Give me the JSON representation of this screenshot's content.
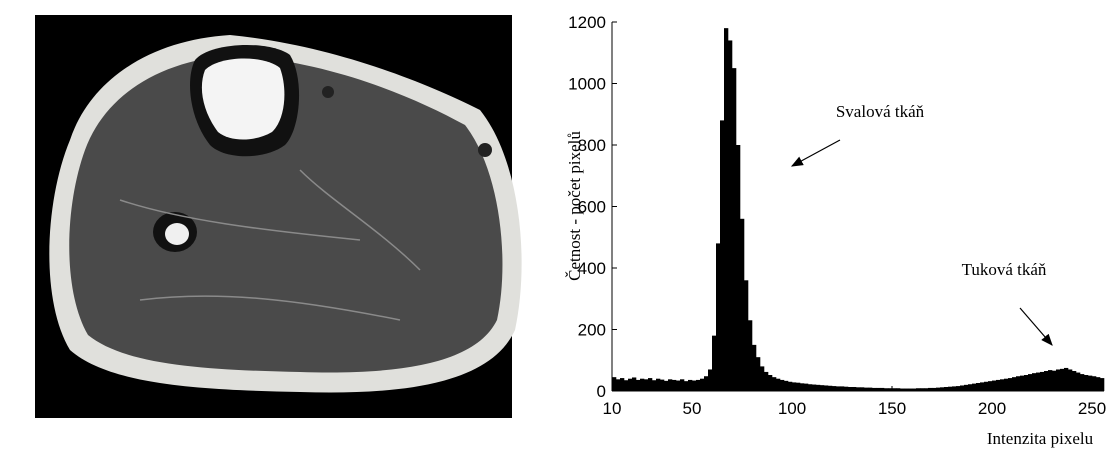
{
  "chart_data": {
    "type": "histogram",
    "bins": [
      10,
      12,
      14,
      16,
      18,
      20,
      22,
      24,
      26,
      28,
      30,
      32,
      34,
      36,
      38,
      40,
      42,
      44,
      46,
      48,
      50,
      52,
      54,
      56,
      58,
      60,
      62,
      64,
      66,
      68,
      70,
      72,
      74,
      76,
      78,
      80,
      82,
      84,
      86,
      88,
      90,
      92,
      94,
      96,
      98,
      100,
      102,
      104,
      106,
      108,
      110,
      112,
      114,
      116,
      118,
      120,
      122,
      124,
      126,
      128,
      130,
      132,
      134,
      136,
      138,
      140,
      142,
      144,
      146,
      148,
      150,
      152,
      154,
      156,
      158,
      160,
      162,
      164,
      166,
      168,
      170,
      172,
      174,
      176,
      178,
      180,
      182,
      184,
      186,
      188,
      190,
      192,
      194,
      196,
      198,
      200,
      202,
      204,
      206,
      208,
      210,
      212,
      214,
      216,
      218,
      220,
      222,
      224,
      226,
      228,
      230,
      232,
      234,
      236,
      238,
      240,
      242,
      244,
      246,
      248,
      250,
      252,
      254,
      256
    ],
    "values": [
      45,
      38,
      42,
      35,
      40,
      44,
      36,
      40,
      38,
      42,
      35,
      40,
      37,
      33,
      38,
      36,
      34,
      38,
      32,
      36,
      34,
      36,
      40,
      48,
      70,
      180,
      480,
      880,
      1180,
      1140,
      1050,
      800,
      560,
      360,
      230,
      150,
      110,
      80,
      62,
      52,
      45,
      40,
      36,
      33,
      30,
      28,
      27,
      25,
      24,
      22,
      21,
      20,
      19,
      18,
      17,
      16,
      15,
      15,
      14,
      13,
      13,
      12,
      12,
      11,
      11,
      10,
      10,
      10,
      9,
      9,
      9,
      9,
      8,
      8,
      8,
      8,
      9,
      9,
      9,
      10,
      10,
      11,
      12,
      13,
      14,
      15,
      16,
      18,
      20,
      22,
      24,
      26,
      28,
      30,
      32,
      34,
      36,
      38,
      40,
      42,
      45,
      48,
      50,
      52,
      55,
      58,
      60,
      62,
      65,
      68,
      66,
      70,
      72,
      75,
      70,
      65,
      60,
      55,
      52,
      50,
      48,
      45,
      42
    ],
    "color": "#000000",
    "xlim": [
      10,
      256
    ],
    "xticks": [
      10,
      50,
      100,
      150,
      200,
      250
    ],
    "ylim": [
      0,
      1200
    ],
    "yticks": [
      0,
      200,
      400,
      600,
      800,
      1000,
      1200
    ],
    "xlabel": "Intenzita pixelu",
    "ylabel": "Četnost - počet pixelů",
    "annotations": [
      {
        "text": "Svalová tkáň"
      },
      {
        "text": "Tuková tkáň"
      }
    ]
  }
}
